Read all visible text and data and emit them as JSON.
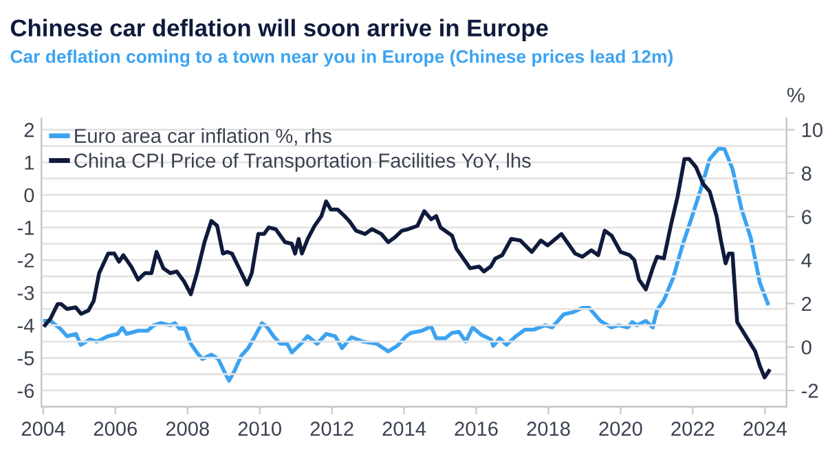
{
  "chart_data": {
    "type": "line",
    "title": "Chinese car deflation will soon arrive in Europe",
    "subtitle": "Car deflation coming to a town near you in Europe (Chinese prices lead 12m)",
    "y2label": "%",
    "xlim": [
      2003.95,
      2024.6
    ],
    "xticks": [
      2004,
      2006,
      2008,
      2010,
      2012,
      2014,
      2016,
      2018,
      2020,
      2022,
      2024
    ],
    "ylim": [
      -6.5,
      2.35
    ],
    "yticks": [
      -6,
      {
        "value": -5.5,
        "label": null
      },
      -5,
      {
        "value": -4.5,
        "label": null
      },
      -4,
      {
        "value": -3.5,
        "label": null
      },
      -3,
      {
        "value": -2.5,
        "label": null
      },
      -2,
      {
        "value": -1.5,
        "label": null
      },
      -1,
      {
        "value": -0.5,
        "label": null
      },
      0,
      {
        "value": 0.5,
        "label": null
      },
      1,
      {
        "value": 1.5,
        "label": null
      },
      2
    ],
    "y2lim": [
      -2.75,
      10.525
    ],
    "y2ticks": [
      -2,
      0,
      2,
      4,
      6,
      8,
      10
    ],
    "grid": "y",
    "legend": "top left",
    "line_style": "solid",
    "marker": "none",
    "series": [
      {
        "name": "Euro area car inflation %, rhs",
        "color": "#3ba3f2",
        "axis": "y2",
        "x": [
          2004.05,
          2004.2,
          2004.47,
          2004.66,
          2004.91,
          2005.04,
          2005.3,
          2005.49,
          2005.8,
          2006.06,
          2006.19,
          2006.31,
          2006.63,
          2006.89,
          2007.07,
          2007.26,
          2007.52,
          2007.65,
          2007.77,
          2007.93,
          2008.09,
          2008.28,
          2008.41,
          2008.66,
          2008.85,
          2009.04,
          2009.15,
          2009.3,
          2009.49,
          2009.68,
          2009.87,
          2010.06,
          2010.19,
          2010.38,
          2010.57,
          2010.76,
          2010.89,
          2011.14,
          2011.33,
          2011.59,
          2011.84,
          2012.09,
          2012.28,
          2012.54,
          2012.86,
          2013.24,
          2013.56,
          2013.81,
          2014.06,
          2014.19,
          2014.5,
          2014.75,
          2014.89,
          2015.14,
          2015.33,
          2015.52,
          2015.71,
          2015.9,
          2016.15,
          2016.41,
          2016.47,
          2016.65,
          2016.84,
          2017.1,
          2017.35,
          2017.6,
          2017.91,
          2018.1,
          2018.42,
          2018.68,
          2018.94,
          2019.13,
          2019.44,
          2019.75,
          2019.94,
          2020.2,
          2020.32,
          2020.45,
          2020.7,
          2020.89,
          2021.01,
          2021.2,
          2021.46,
          2021.71,
          2021.96,
          2022.22,
          2022.47,
          2022.73,
          2022.88,
          2023.1,
          2023.35,
          2023.61,
          2023.86,
          2024.08
        ],
        "values": [
          1.2,
          1.2,
          0.85,
          0.5,
          0.6,
          0.1,
          0.35,
          0.25,
          0.5,
          0.6,
          0.9,
          0.6,
          0.75,
          0.75,
          1.0,
          1.1,
          1.0,
          1.1,
          0.85,
          0.85,
          0.15,
          -0.3,
          -0.55,
          -0.35,
          -0.55,
          -1.2,
          -1.55,
          -1.1,
          -0.4,
          -0.05,
          0.5,
          1.1,
          0.95,
          0.5,
          0.15,
          0.15,
          -0.25,
          0.15,
          0.5,
          0.15,
          0.6,
          0.5,
          -0.05,
          0.45,
          0.25,
          0.15,
          -0.2,
          0.05,
          0.5,
          0.65,
          0.75,
          0.95,
          0.4,
          0.4,
          0.65,
          0.7,
          0.25,
          0.9,
          0.55,
          0.35,
          0.05,
          0.4,
          0.1,
          0.5,
          0.8,
          0.8,
          1.0,
          0.9,
          1.5,
          1.6,
          1.8,
          1.8,
          1.2,
          0.9,
          1.0,
          0.9,
          1.15,
          1.0,
          1.2,
          0.9,
          1.7,
          2.15,
          3.2,
          4.65,
          5.9,
          7.25,
          8.65,
          9.15,
          9.1,
          8.2,
          6.35,
          5.0,
          2.95,
          2.0
        ]
      },
      {
        "name": "China CPI Price of Transportation Facilities YoY, lhs",
        "color": "#0f1a3c",
        "x": [
          2004.05,
          2004.2,
          2004.4,
          2004.5,
          2004.66,
          2004.9,
          2005.05,
          2005.25,
          2005.4,
          2005.55,
          2005.8,
          2005.97,
          2006.1,
          2006.22,
          2006.44,
          2006.63,
          2006.82,
          2007.0,
          2007.14,
          2007.33,
          2007.52,
          2007.7,
          2007.9,
          2008.09,
          2008.26,
          2008.47,
          2008.66,
          2008.82,
          2008.98,
          2009.1,
          2009.23,
          2009.43,
          2009.65,
          2009.78,
          2009.96,
          2010.12,
          2010.25,
          2010.44,
          2010.7,
          2010.89,
          2010.98,
          2011.08,
          2011.17,
          2011.33,
          2011.52,
          2011.71,
          2011.84,
          2011.97,
          2012.16,
          2012.35,
          2012.48,
          2012.67,
          2012.92,
          2013.11,
          2013.37,
          2013.56,
          2013.75,
          2013.94,
          2014.12,
          2014.37,
          2014.56,
          2014.75,
          2014.89,
          2015.01,
          2015.33,
          2015.45,
          2015.83,
          2016.08,
          2016.21,
          2016.4,
          2016.53,
          2016.72,
          2016.97,
          2017.22,
          2017.54,
          2017.79,
          2017.98,
          2018.36,
          2018.55,
          2018.74,
          2018.94,
          2019.19,
          2019.38,
          2019.56,
          2019.75,
          2020.0,
          2020.25,
          2020.38,
          2020.51,
          2020.7,
          2020.89,
          2021.01,
          2021.2,
          2021.39,
          2021.58,
          2021.77,
          2021.9,
          2022.09,
          2022.28,
          2022.47,
          2022.66,
          2022.78,
          2022.91,
          2023.0,
          2023.1,
          2023.23,
          2023.48,
          2023.73,
          2023.86,
          2023.99,
          2024.11
        ],
        "values": [
          -4.0,
          -3.8,
          -3.35,
          -3.35,
          -3.5,
          -3.45,
          -3.65,
          -3.55,
          -3.25,
          -2.4,
          -1.8,
          -1.8,
          -2.05,
          -1.85,
          -2.2,
          -2.6,
          -2.4,
          -2.4,
          -1.75,
          -2.25,
          -2.4,
          -2.35,
          -2.65,
          -3.05,
          -2.4,
          -1.45,
          -0.8,
          -0.95,
          -1.8,
          -1.75,
          -1.8,
          -2.25,
          -2.75,
          -2.4,
          -1.2,
          -1.2,
          -1.0,
          -1.05,
          -1.45,
          -1.5,
          -1.8,
          -1.35,
          -1.8,
          -1.35,
          -0.95,
          -0.65,
          -0.2,
          -0.45,
          -0.45,
          -0.65,
          -0.8,
          -1.1,
          -1.2,
          -1.05,
          -1.2,
          -1.45,
          -1.3,
          -1.1,
          -1.05,
          -0.95,
          -0.5,
          -0.75,
          -0.65,
          -1.0,
          -1.25,
          -1.65,
          -2.25,
          -2.2,
          -2.35,
          -2.2,
          -1.95,
          -1.85,
          -1.35,
          -1.4,
          -1.75,
          -1.4,
          -1.55,
          -1.2,
          -1.5,
          -1.8,
          -1.9,
          -1.7,
          -1.85,
          -1.1,
          -1.25,
          -1.75,
          -1.85,
          -2.0,
          -2.6,
          -2.9,
          -2.25,
          -1.9,
          -1.95,
          -0.95,
          -0.05,
          1.1,
          1.1,
          0.85,
          0.35,
          0.1,
          -0.65,
          -1.4,
          -2.1,
          -1.8,
          -1.8,
          -3.9,
          -4.35,
          -4.8,
          -5.25,
          -5.6,
          -5.4
        ]
      }
    ]
  }
}
